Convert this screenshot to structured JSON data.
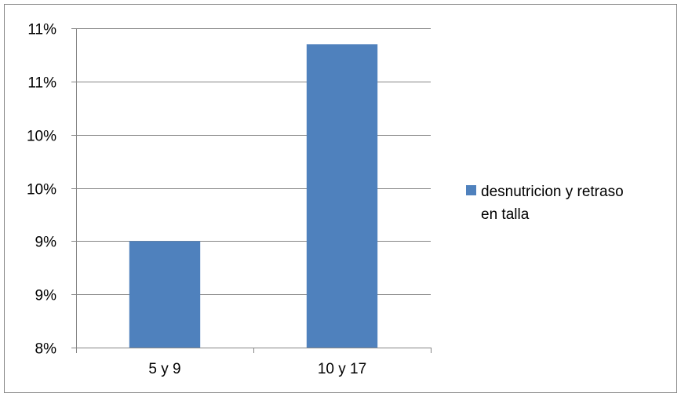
{
  "chart_data": {
    "type": "bar",
    "categories": [
      "5 y 9",
      "10 y 17"
    ],
    "series": [
      {
        "name": "desnutricion y retraso en talla",
        "values": [
          9.0,
          10.85
        ],
        "color": "#4F81BD"
      }
    ],
    "y_tick_labels": [
      "8%",
      "9%",
      "9%",
      "10%",
      "10%",
      "11%",
      "11%"
    ],
    "ylim": [
      8.0,
      11.0
    ],
    "y_tick_step": 0.5,
    "grid": true,
    "legend_position": "right",
    "legend_lines": [
      "desnutricion y retraso",
      "en talla"
    ]
  }
}
